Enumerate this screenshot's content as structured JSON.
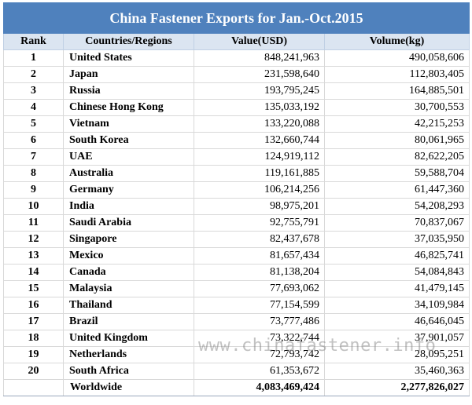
{
  "title": "China Fastener Exports for Jan.-Oct.2015",
  "headers": {
    "rank": "Rank",
    "country": "Countries/Regions",
    "value": "Value(USD)",
    "volume": "Volume(kg)"
  },
  "rows": [
    {
      "rank": "1",
      "country": "United States",
      "value": "848,241,963",
      "volume": "490,058,606"
    },
    {
      "rank": "2",
      "country": "Japan",
      "value": "231,598,640",
      "volume": "112,803,405"
    },
    {
      "rank": "3",
      "country": "Russia",
      "value": "193,795,245",
      "volume": "164,885,501"
    },
    {
      "rank": "4",
      "country": "Chinese Hong Kong",
      "value": "135,033,192",
      "volume": "30,700,553"
    },
    {
      "rank": "5",
      "country": "Vietnam",
      "value": "133,220,088",
      "volume": "42,215,253"
    },
    {
      "rank": "6",
      "country": "South Korea",
      "value": "132,660,744",
      "volume": "80,061,965"
    },
    {
      "rank": "7",
      "country": "UAE",
      "value": "124,919,112",
      "volume": "82,622,205"
    },
    {
      "rank": "8",
      "country": "Australia",
      "value": "119,161,885",
      "volume": "59,588,704"
    },
    {
      "rank": "9",
      "country": "Germany",
      "value": "106,214,256",
      "volume": "61,447,360"
    },
    {
      "rank": "10",
      "country": "India",
      "value": "98,975,201",
      "volume": "54,208,293"
    },
    {
      "rank": "11",
      "country": "Saudi Arabia",
      "value": "92,755,791",
      "volume": "70,837,067"
    },
    {
      "rank": "12",
      "country": "Singapore",
      "value": "82,437,678",
      "volume": "37,035,950"
    },
    {
      "rank": "13",
      "country": "Mexico",
      "value": "81,657,434",
      "volume": "46,825,741"
    },
    {
      "rank": "14",
      "country": "Canada",
      "value": "81,138,204",
      "volume": "54,084,843"
    },
    {
      "rank": "15",
      "country": "Malaysia",
      "value": "77,693,062",
      "volume": "41,479,145"
    },
    {
      "rank": "16",
      "country": "Thailand",
      "value": "77,154,599",
      "volume": "34,109,984"
    },
    {
      "rank": "17",
      "country": "Brazil",
      "value": "73,777,486",
      "volume": "46,646,045"
    },
    {
      "rank": "18",
      "country": "United Kingdom",
      "value": "73,322,744",
      "volume": "37,901,057"
    },
    {
      "rank": "19",
      "country": "Netherlands",
      "value": "72,793,742",
      "volume": "28,095,251"
    },
    {
      "rank": "20",
      "country": "South Africa",
      "value": "61,353,672",
      "volume": "35,460,363"
    }
  ],
  "total": {
    "label": "Worldwide",
    "value": "4,083,469,424",
    "volume": "2,277,826,027"
  },
  "watermark": "www.chinafastener.info"
}
